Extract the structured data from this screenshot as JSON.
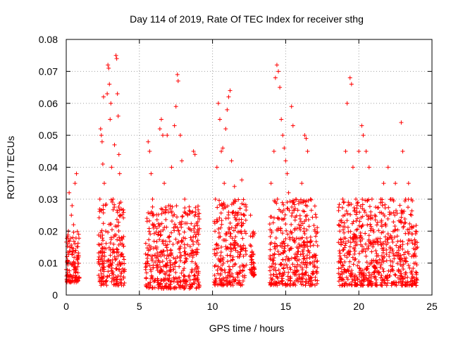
{
  "chart_data": {
    "type": "scatter",
    "title": "Day 114 of 2019, Rate Of TEC Index for receiver sthg",
    "xlabel": "GPS time / hours",
    "ylabel": "ROTI / TECUs",
    "xlim": [
      0,
      25
    ],
    "ylim": [
      0,
      0.08
    ],
    "x_ticks": [
      0,
      5,
      10,
      15,
      20,
      25
    ],
    "x_tick_labels": [
      "0",
      "5",
      "10",
      "15",
      "20",
      "25"
    ],
    "y_ticks": [
      0,
      0.01,
      0.02,
      0.03,
      0.04,
      0.05,
      0.06,
      0.07,
      0.08
    ],
    "y_tick_labels": [
      "0",
      "0.01",
      "0.02",
      "0.03",
      "0.04",
      "0.05",
      "0.06",
      "0.07",
      "0.08"
    ],
    "grid": true,
    "marker": "+",
    "color": "#ff0000",
    "series": [
      {
        "name": "ROTI",
        "points": [
          [
            0.0,
            0.008
          ],
          [
            0.05,
            0.012
          ],
          [
            0.1,
            0.006
          ],
          [
            0.15,
            0.02
          ],
          [
            0.2,
            0.032
          ],
          [
            0.25,
            0.015
          ],
          [
            0.3,
            0.01
          ],
          [
            0.35,
            0.025
          ],
          [
            0.4,
            0.028
          ],
          [
            0.45,
            0.018
          ],
          [
            0.5,
            0.022
          ],
          [
            0.55,
            0.009
          ],
          [
            0.6,
            0.035
          ],
          [
            0.65,
            0.014
          ],
          [
            0.7,
            0.038
          ],
          [
            0.75,
            0.011
          ],
          [
            0.8,
            0.007
          ],
          [
            0.85,
            0.019
          ],
          [
            2.2,
            0.01
          ],
          [
            2.3,
            0.03
          ],
          [
            2.35,
            0.052
          ],
          [
            2.4,
            0.05
          ],
          [
            2.45,
            0.048
          ],
          [
            2.5,
            0.041
          ],
          [
            2.55,
            0.062
          ],
          [
            2.6,
            0.035
          ],
          [
            2.7,
            0.02
          ],
          [
            2.8,
            0.063
          ],
          [
            2.85,
            0.072
          ],
          [
            2.9,
            0.071
          ],
          [
            2.95,
            0.066
          ],
          [
            3.0,
            0.055
          ],
          [
            3.05,
            0.06
          ],
          [
            3.1,
            0.04
          ],
          [
            3.2,
            0.03
          ],
          [
            3.3,
            0.047
          ],
          [
            3.4,
            0.075
          ],
          [
            3.45,
            0.074
          ],
          [
            3.5,
            0.063
          ],
          [
            3.55,
            0.056
          ],
          [
            3.6,
            0.044
          ],
          [
            3.65,
            0.038
          ],
          [
            3.7,
            0.025
          ],
          [
            3.8,
            0.018
          ],
          [
            3.9,
            0.012
          ],
          [
            4.0,
            0.008
          ],
          [
            5.5,
            0.01
          ],
          [
            5.6,
            0.048
          ],
          [
            5.7,
            0.045
          ],
          [
            5.8,
            0.038
          ],
          [
            5.9,
            0.03
          ],
          [
            6.0,
            0.022
          ],
          [
            6.2,
            0.015
          ],
          [
            6.4,
            0.052
          ],
          [
            6.5,
            0.055
          ],
          [
            6.6,
            0.05
          ],
          [
            6.7,
            0.035
          ],
          [
            6.9,
            0.05
          ],
          [
            7.0,
            0.028
          ],
          [
            7.2,
            0.04
          ],
          [
            7.4,
            0.053
          ],
          [
            7.5,
            0.059
          ],
          [
            7.6,
            0.069
          ],
          [
            7.65,
            0.067
          ],
          [
            7.8,
            0.05
          ],
          [
            7.9,
            0.042
          ],
          [
            8.1,
            0.03
          ],
          [
            8.3,
            0.025
          ],
          [
            8.5,
            0.018
          ],
          [
            8.7,
            0.045
          ],
          [
            8.8,
            0.044
          ],
          [
            9.0,
            0.02
          ],
          [
            10.2,
            0.03
          ],
          [
            10.3,
            0.04
          ],
          [
            10.4,
            0.06
          ],
          [
            10.5,
            0.055
          ],
          [
            10.6,
            0.045
          ],
          [
            10.7,
            0.046
          ],
          [
            10.8,
            0.035
          ],
          [
            10.9,
            0.052
          ],
          [
            11.0,
            0.058
          ],
          [
            11.1,
            0.062
          ],
          [
            11.2,
            0.064
          ],
          [
            11.3,
            0.042
          ],
          [
            11.5,
            0.034
          ],
          [
            11.7,
            0.025
          ],
          [
            12.0,
            0.036
          ],
          [
            12.2,
            0.02
          ],
          [
            12.6,
            0.025
          ],
          [
            12.7,
            0.012
          ],
          [
            14.0,
            0.035
          ],
          [
            14.2,
            0.045
          ],
          [
            14.3,
            0.068
          ],
          [
            14.4,
            0.072
          ],
          [
            14.5,
            0.07
          ],
          [
            14.6,
            0.065
          ],
          [
            14.7,
            0.055
          ],
          [
            14.8,
            0.05
          ],
          [
            14.9,
            0.046
          ],
          [
            15.0,
            0.042
          ],
          [
            15.1,
            0.038
          ],
          [
            15.2,
            0.032
          ],
          [
            15.4,
            0.059
          ],
          [
            15.5,
            0.053
          ],
          [
            15.7,
            0.03
          ],
          [
            15.9,
            0.022
          ],
          [
            16.1,
            0.035
          ],
          [
            16.3,
            0.05
          ],
          [
            16.4,
            0.049
          ],
          [
            16.5,
            0.045
          ],
          [
            16.7,
            0.03
          ],
          [
            17.0,
            0.02
          ],
          [
            18.7,
            0.02
          ],
          [
            18.9,
            0.03
          ],
          [
            19.1,
            0.045
          ],
          [
            19.2,
            0.06
          ],
          [
            19.4,
            0.068
          ],
          [
            19.5,
            0.066
          ],
          [
            19.6,
            0.04
          ],
          [
            19.8,
            0.03
          ],
          [
            20.0,
            0.045
          ],
          [
            20.2,
            0.053
          ],
          [
            20.3,
            0.05
          ],
          [
            20.5,
            0.045
          ],
          [
            20.7,
            0.04
          ],
          [
            20.9,
            0.03
          ],
          [
            21.1,
            0.025
          ],
          [
            21.5,
            0.03
          ],
          [
            21.7,
            0.035
          ],
          [
            22.0,
            0.04
          ],
          [
            22.2,
            0.03
          ],
          [
            22.5,
            0.035
          ],
          [
            22.9,
            0.054
          ],
          [
            23.0,
            0.045
          ],
          [
            23.2,
            0.03
          ],
          [
            23.4,
            0.035
          ],
          [
            23.6,
            0.025
          ],
          [
            23.9,
            0.02
          ],
          [
            24.0,
            0.015
          ]
        ]
      }
    ],
    "background_bands": [
      {
        "x_start": 0.0,
        "x_end": 0.9,
        "y_low": 0.004,
        "y_high": 0.02
      },
      {
        "x_start": 2.2,
        "x_end": 4.0,
        "y_low": 0.003,
        "y_high": 0.03
      },
      {
        "x_start": 5.4,
        "x_end": 9.1,
        "y_low": 0.002,
        "y_high": 0.028
      },
      {
        "x_start": 10.1,
        "x_end": 12.3,
        "y_low": 0.003,
        "y_high": 0.03
      },
      {
        "x_start": 12.55,
        "x_end": 12.9,
        "y_low": 0.006,
        "y_high": 0.02
      },
      {
        "x_start": 13.9,
        "x_end": 17.2,
        "y_low": 0.003,
        "y_high": 0.03
      },
      {
        "x_start": 18.6,
        "x_end": 24.0,
        "y_low": 0.003,
        "y_high": 0.03
      }
    ]
  }
}
